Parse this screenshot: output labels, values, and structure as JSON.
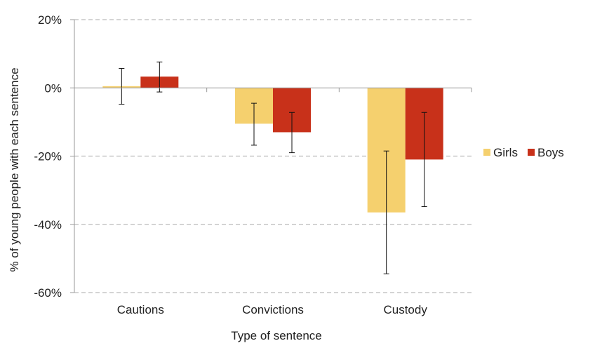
{
  "chart_data": {
    "type": "bar",
    "title": "",
    "xlabel": "Type of sentence",
    "ylabel": "% of young people with each sentence",
    "categories": [
      "Cautions",
      "Convictions",
      "Custody"
    ],
    "ylim": [
      -60,
      20
    ],
    "yticks": [
      20,
      0,
      -20,
      -40,
      -60
    ],
    "ytick_labels": [
      "20%",
      "0%",
      "-20%",
      "-40%",
      "-60%"
    ],
    "grid": true,
    "legend_position": "right",
    "series": [
      {
        "name": "Girls",
        "color": "#F5D06E",
        "values": [
          0.5,
          -10.5,
          -36.5
        ],
        "error_low": [
          -4.8,
          -16.8,
          -54.5
        ],
        "error_high": [
          5.7,
          -4.5,
          -18.5
        ]
      },
      {
        "name": "Boys",
        "color": "#C8311A",
        "values": [
          3.3,
          -13.0,
          -21.0
        ],
        "error_low": [
          -1.2,
          -19.0,
          -34.8
        ],
        "error_high": [
          7.6,
          -7.2,
          -7.2
        ]
      }
    ]
  }
}
